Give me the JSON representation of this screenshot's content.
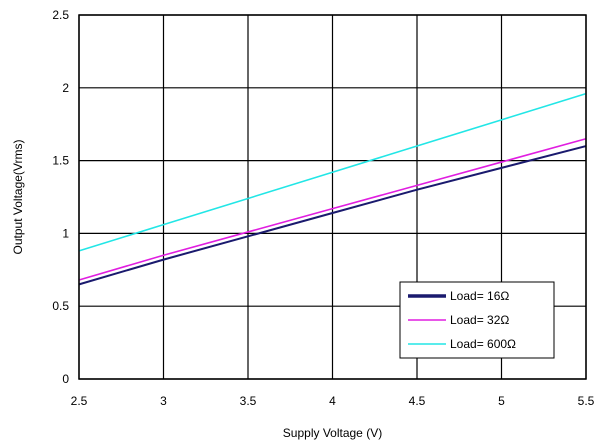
{
  "chart_data": {
    "type": "line",
    "xlabel": "Supply Voltage (V)",
    "ylabel": "Output Voltage(Vrms)",
    "xlim": [
      2.5,
      5.5
    ],
    "ylim": [
      0,
      2.5
    ],
    "x_ticks": [
      "2.5",
      "3",
      "3.5",
      "4",
      "4.5",
      "5",
      "5.5"
    ],
    "y_ticks": [
      "0",
      "0.5",
      "1",
      "1.5",
      "2",
      "2.5"
    ],
    "grid": true,
    "legend_position": "bottom-right",
    "series": [
      {
        "name": "Load= 16Ω",
        "color": "#1a1a6e",
        "x": [
          2.5,
          3,
          3.5,
          4,
          4.5,
          5,
          5.5
        ],
        "y": [
          0.65,
          0.82,
          0.98,
          1.14,
          1.3,
          1.45,
          1.6
        ]
      },
      {
        "name": "Load= 32Ω",
        "color": "#e01ee0",
        "x": [
          2.5,
          3,
          3.5,
          4,
          4.5,
          5,
          5.5
        ],
        "y": [
          0.68,
          0.85,
          1.01,
          1.17,
          1.33,
          1.49,
          1.65
        ]
      },
      {
        "name": "Load= 600Ω",
        "color": "#22e6e6",
        "x": [
          2.5,
          3,
          3.5,
          4,
          4.5,
          5,
          5.5
        ],
        "y": [
          0.88,
          1.06,
          1.24,
          1.42,
          1.6,
          1.78,
          1.96
        ]
      }
    ]
  }
}
